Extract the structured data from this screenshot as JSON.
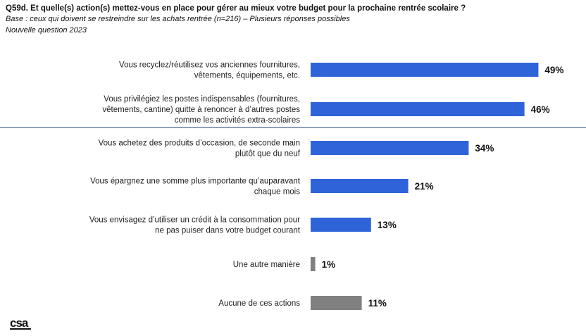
{
  "header": {
    "title": "Q59d. Et quelle(s) action(s) mettez-vous en place pour gérer au mieux votre budget pour la prochaine rentrée scolaire ?",
    "base": "Base : ceux qui doivent se restreindre sur les achats rentrée (n=216) – Plusieurs réponses possibles",
    "note": "Nouvelle question 2023"
  },
  "logo": {
    "text": "csa"
  },
  "colors": {
    "primary_bar": "#2f63d8",
    "secondary_bar": "#808080",
    "separator": "#1f3f73"
  },
  "chart_data": {
    "type": "bar",
    "orientation": "horizontal",
    "xlim": [
      0,
      60
    ],
    "grid": false,
    "categories": [
      [
        "Vous recyclez/réutilisez vos anciennes fournitures,",
        "vêtements, équipements, etc."
      ],
      [
        "Vous privilégiez les postes indispensables (fournitures,",
        "vêtements, cantine) quitte à renoncer à d’autres postes",
        "comme les activités extra-scolaires"
      ],
      [
        "Vous achetez des produits d’occasion, de seconde main",
        "plutôt que du neuf"
      ],
      [
        "Vous épargnez une somme plus importante qu’auparavant",
        "chaque mois"
      ],
      [
        "Vous envisagez d’utiliser un crédit à la consommation pour",
        "ne pas puiser dans votre budget courant"
      ],
      [
        "Une autre manière"
      ],
      [
        "Aucune de ces actions"
      ]
    ],
    "values": [
      49,
      46,
      34,
      21,
      13,
      1,
      11
    ],
    "value_labels": [
      "49%",
      "46%",
      "34%",
      "21%",
      "13%",
      "1%",
      "11%"
    ],
    "bar_colors": [
      "#2f63d8",
      "#2f63d8",
      "#2f63d8",
      "#2f63d8",
      "#2f63d8",
      "#808080",
      "#808080"
    ]
  }
}
